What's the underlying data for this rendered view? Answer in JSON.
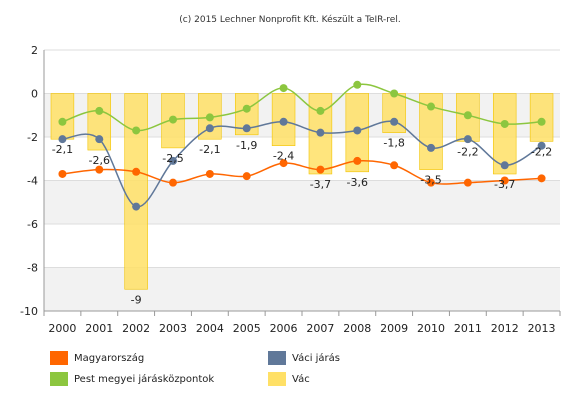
{
  "credit": "(c) 2015 Lechner Nonprofit Kft. Készült a TeIR-rel.",
  "chart_data": {
    "type": "bar",
    "categories": [
      "2000",
      "2001",
      "2002",
      "2003",
      "2004",
      "2005",
      "2006",
      "2007",
      "2008",
      "2009",
      "2010",
      "2011",
      "2012",
      "2013"
    ],
    "ylim": [
      -10,
      2
    ],
    "yticks": [
      2,
      0,
      -2,
      -4,
      -6,
      -8,
      -10
    ],
    "grid": true,
    "legend_position": "bottom",
    "series": [
      {
        "name": "Vác",
        "type": "bar",
        "color": "#FFE066",
        "values": [
          -2.1,
          -2.6,
          -9,
          -2.5,
          -2.1,
          -1.9,
          -2.4,
          -3.7,
          -3.6,
          -1.8,
          -3.5,
          -2.2,
          -3.7,
          -2.2
        ],
        "labels": [
          "-2,1",
          "-2,6",
          "-9",
          "-2,5",
          "-2,1",
          "-1,9",
          "-2,4",
          "-3,7",
          "-3,6",
          "-1,8",
          "-3,5",
          "-2,2",
          "-3,7",
          "-2,2"
        ]
      },
      {
        "name": "Magyarország",
        "type": "line",
        "color": "#FF6600",
        "values": [
          -3.7,
          -3.5,
          -3.6,
          -4.1,
          -3.7,
          -3.8,
          -3.2,
          -3.5,
          -3.1,
          -3.3,
          -4.1,
          -4.1,
          -4.0,
          -3.9
        ]
      },
      {
        "name": "Váci járás",
        "type": "line",
        "color": "#607899",
        "values": [
          -2.1,
          -2.1,
          -5.2,
          -3.1,
          -1.6,
          -1.6,
          -1.3,
          -1.8,
          -1.7,
          -1.3,
          -2.5,
          -2.1,
          -3.3,
          -2.4
        ]
      },
      {
        "name": "Pest megyei járásközpontok",
        "type": "line",
        "color": "#8CC63F",
        "values": [
          -1.3,
          -0.8,
          -1.7,
          -1.2,
          -1.1,
          -0.7,
          0.25,
          -0.8,
          0.4,
          0.0,
          -0.6,
          -1.0,
          -1.4,
          -1.3
        ]
      }
    ]
  },
  "legend": [
    {
      "label": "Magyarország",
      "color": "#FF6600"
    },
    {
      "label": "Váci járás",
      "color": "#607899"
    },
    {
      "label": "Pest megyei járásközpontok",
      "color": "#8CC63F"
    },
    {
      "label": "Vác",
      "color": "#FFE066"
    }
  ]
}
